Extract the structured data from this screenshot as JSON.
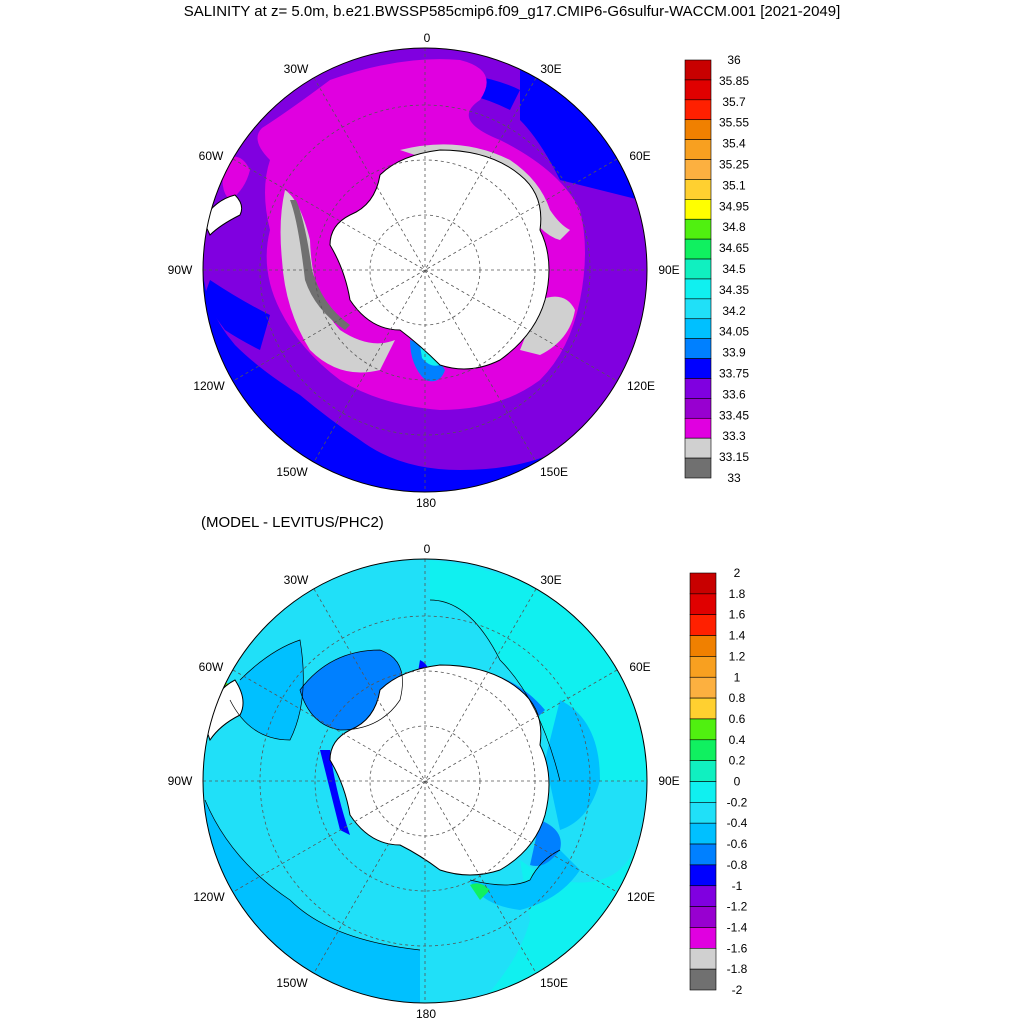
{
  "top_map": {
    "title": "SALINITY at z=   5.0m, b.e21.BWSSP585cmip6.f09_g17.CMIP6-G6sulfur-WACCM.001 [2021-2049]",
    "lon_labels": {
      "n": "0",
      "nne": "30E",
      "ene": "60E",
      "e": "90E",
      "ese": "120E",
      "sse": "150E",
      "s": "180",
      "ssw": "150W",
      "wsw": "120W",
      "w": "90W",
      "wnw": "60W",
      "nnw": "30W"
    },
    "colorbar": {
      "labels": [
        "36",
        "35.85",
        "35.7",
        "35.55",
        "35.4",
        "35.25",
        "35.1",
        "34.95",
        "34.8",
        "34.65",
        "34.5",
        "34.35",
        "34.2",
        "34.05",
        "33.9",
        "33.75",
        "33.6",
        "33.45",
        "33.3",
        "33.15",
        "33"
      ],
      "colors": [
        "#c80000",
        "#e00000",
        "#ff2000",
        "#f08000",
        "#f8a020",
        "#fcb040",
        "#ffd030",
        "#ffff00",
        "#50f010",
        "#10f060",
        "#10f0c0",
        "#10f0f0",
        "#20e0f8",
        "#00c0ff",
        "#0080ff",
        "#0000ff",
        "#8000e0",
        "#9800d0",
        "#e000e0",
        "#d0d0d0",
        "#707070"
      ]
    }
  },
  "bottom_map": {
    "subtitle": "(MODEL - LEVITUS/PHC2)",
    "lon_labels": {
      "n": "0",
      "nne": "30E",
      "ene": "60E",
      "e": "90E",
      "ese": "120E",
      "sse": "150E",
      "s": "180",
      "ssw": "150W",
      "wsw": "120W",
      "w": "90W",
      "wnw": "60W",
      "nnw": "30W"
    },
    "colorbar": {
      "labels": [
        "2",
        "1.8",
        "1.6",
        "1.4",
        "1.2",
        "1",
        "0.8",
        "0.6",
        "0.4",
        "0.2",
        "0",
        "-0.2",
        "-0.4",
        "-0.6",
        "-0.8",
        "-1",
        "-1.2",
        "-1.4",
        "-1.6",
        "-1.8",
        "-2"
      ],
      "colors": [
        "#c80000",
        "#e00000",
        "#ff2000",
        "#f08000",
        "#f8a020",
        "#fcb040",
        "#ffd030",
        "#50f010",
        "#10f060",
        "#10f0c0",
        "#10f0f0",
        "#20e0f8",
        "#00c0ff",
        "#0080ff",
        "#0000ff",
        "#8000e0",
        "#9800d0",
        "#e000e0",
        "#d0d0d0",
        "#707070"
      ]
    }
  }
}
